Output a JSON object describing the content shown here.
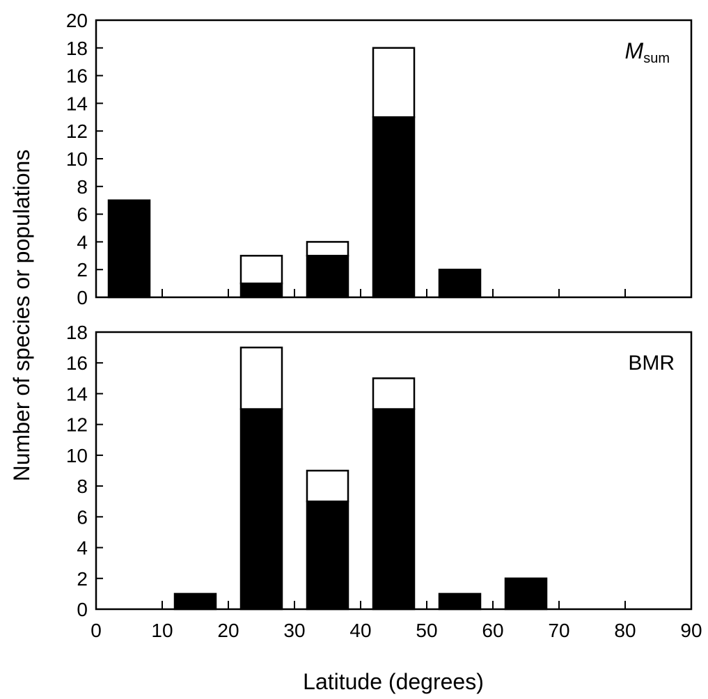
{
  "colors": {
    "background": "#ffffff",
    "axis": "#000000",
    "filled": "#000000",
    "open": "#ffffff"
  },
  "chart_data": [
    {
      "type": "bar",
      "stacked": true,
      "panel_label": "M",
      "panel_label_sub": "sum",
      "xlabel": "",
      "ylabel": "Number of species or populations",
      "xlim": [
        0,
        90
      ],
      "ylim": [
        0,
        20
      ],
      "yticks": [
        "0",
        "2",
        "4",
        "6",
        "8",
        "10",
        "12",
        "14",
        "16",
        "18",
        "20"
      ],
      "x": [
        5,
        15,
        25,
        35,
        45,
        55,
        65,
        75,
        85
      ],
      "series": [
        {
          "fill": "black",
          "values": [
            7,
            0,
            1,
            3,
            13,
            2,
            0,
            0,
            0
          ]
        },
        {
          "fill": "white",
          "values": [
            0,
            0,
            2,
            1,
            5,
            0,
            0,
            0,
            0
          ]
        }
      ]
    },
    {
      "type": "bar",
      "stacked": true,
      "panel_label": "BMR",
      "xlabel": "Latitude (degrees)",
      "ylabel": "Number of species or populations",
      "xlim": [
        0,
        90
      ],
      "ylim": [
        0,
        18
      ],
      "yticks": [
        "0",
        "2",
        "4",
        "6",
        "8",
        "10",
        "12",
        "14",
        "16",
        "18"
      ],
      "xticks": [
        "0",
        "10",
        "20",
        "30",
        "40",
        "50",
        "60",
        "70",
        "80",
        "90"
      ],
      "x": [
        5,
        15,
        25,
        35,
        45,
        55,
        65,
        75,
        85
      ],
      "series": [
        {
          "fill": "black",
          "values": [
            0,
            1,
            13,
            7,
            13,
            1,
            2,
            0,
            0
          ]
        },
        {
          "fill": "white",
          "values": [
            0,
            0,
            4,
            2,
            2,
            0,
            0,
            0,
            0
          ]
        }
      ]
    }
  ]
}
